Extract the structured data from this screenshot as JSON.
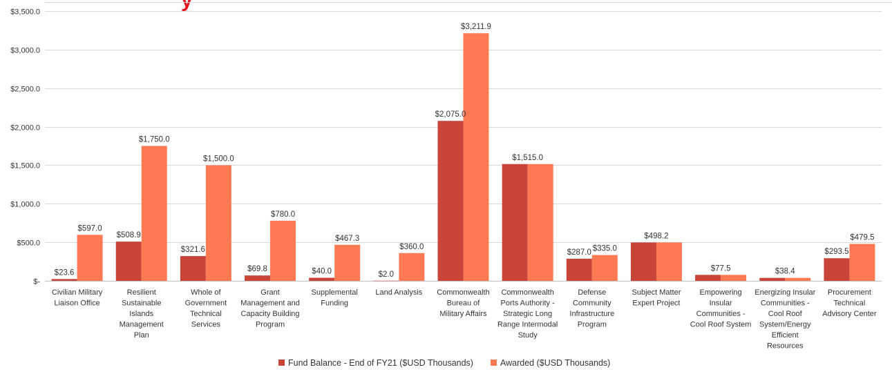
{
  "colors": {
    "fund_balance": "#c9453a",
    "awarded": "#ff7a52",
    "title": "#e8141a",
    "grid": "#d9d9d9",
    "axis": "#bfbfbf",
    "text": "#333333"
  },
  "title_fragment": "y",
  "chart_data": {
    "type": "bar",
    "categories": [
      [
        "Civilian Military",
        "Liaison Office"
      ],
      [
        "Resilient",
        "Sustainable",
        "Islands",
        "Management",
        "Plan"
      ],
      [
        "Whole of",
        "Government",
        "Technical",
        "Services"
      ],
      [
        "Grant",
        "Management and",
        "Capacity Building",
        "Program"
      ],
      [
        "Supplemental",
        "Funding"
      ],
      [
        "Land Analysis"
      ],
      [
        "Commonwealth",
        "Bureau of",
        "Military Affairs"
      ],
      [
        "Commonwealth",
        "Ports Authority -",
        "Strategic Long",
        "Range Intermodal",
        "Study"
      ],
      [
        "Defense",
        "Community",
        "Infrastructure",
        "Program"
      ],
      [
        "Subject Matter",
        "Expert Project"
      ],
      [
        "Empowering",
        "Insular",
        "Communities -",
        "Cool Roof System"
      ],
      [
        "Energizing Insular",
        "Communities -",
        "Cool Roof",
        "System/Energy",
        "Efficient",
        "Resources"
      ],
      [
        "Procurement",
        "Technical",
        "Advisory Center"
      ]
    ],
    "series": [
      {
        "name": "Fund Balance - End of FY21 ($USD Thousands)",
        "values": [
          23.6,
          508.9,
          321.6,
          69.8,
          40.0,
          2.0,
          2075.0,
          1515.0,
          287.0,
          498.2,
          77.5,
          38.4,
          293.5
        ],
        "labels": [
          "$23.6",
          "$508.9",
          "$321.6",
          "$69.8",
          "$40.0",
          "$2.0",
          "$2,075.0",
          "$1,515.0",
          "$287.0",
          "",
          "$77.5",
          "$38.4",
          "$293.5"
        ]
      },
      {
        "name": "Awarded ($USD Thousands)",
        "values": [
          597.0,
          1750.0,
          1500.0,
          780.0,
          467.3,
          360.0,
          3211.9,
          1515.0,
          335.0,
          498.2,
          77.5,
          38.4,
          479.5
        ],
        "labels": [
          "$597.0",
          "$1,750.0",
          "$1,500.0",
          "$780.0",
          "$467.3",
          "$360.0",
          "$3,211.9",
          "",
          "$335.0",
          "$498.2",
          "",
          "",
          "$479.5"
        ]
      }
    ],
    "yticks": [
      0,
      500,
      1000,
      1500,
      2000,
      2500,
      3000,
      3500
    ],
    "ytick_labels": [
      "$-",
      "$500.0",
      "$1,000.0",
      "$1,500.0",
      "$2,000.0",
      "$2,500.0",
      "$3,000.0",
      "$3,500.0"
    ],
    "ylim": [
      0,
      3500
    ],
    "grid": true,
    "legend_position": "bottom"
  }
}
